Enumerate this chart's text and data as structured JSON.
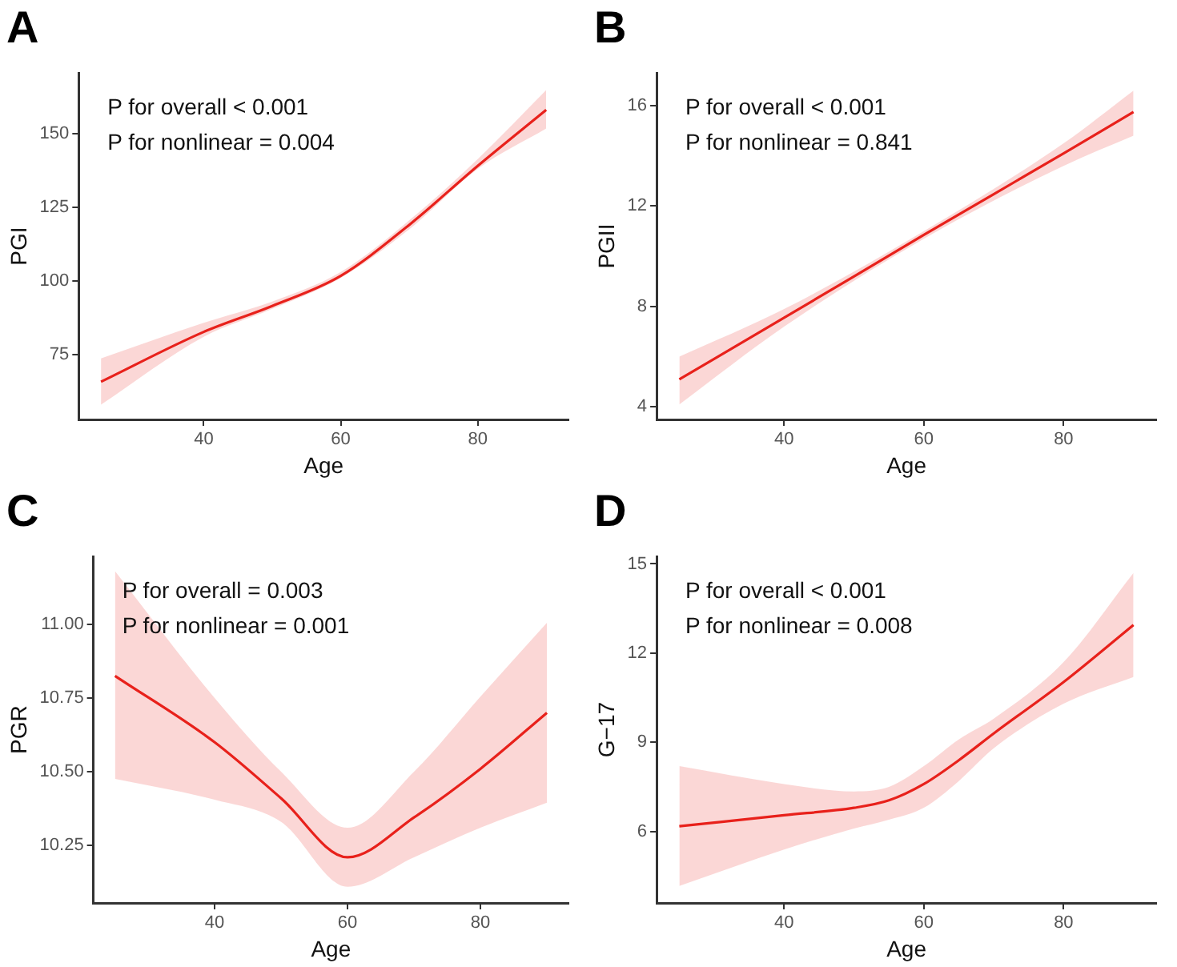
{
  "chart_data": [
    {
      "type": "line",
      "title": "A",
      "xlabel": "Age",
      "ylabel": "PGI",
      "annotations": [
        "P for overall < 0.001",
        "P for nonlinear = 0.004"
      ],
      "x": [
        25,
        40,
        50,
        60,
        70,
        80,
        90
      ],
      "xlim": [
        21.75,
        93.25
      ],
      "xticks": [
        40,
        60,
        80
      ],
      "ylim": [
        53,
        170.5
      ],
      "yticks": [
        75,
        100,
        125,
        150
      ],
      "grid": false,
      "legend": false,
      "series": [
        {
          "color": "#e8211c",
          "values": [
            65.8,
            82.7,
            91.5,
            101.7,
            119,
            139,
            158
          ],
          "lower": [
            58,
            81,
            90.5,
            101,
            117.5,
            138,
            151.7
          ],
          "upper": [
            73.7,
            85.8,
            93,
            103,
            120.5,
            141.3,
            164.7
          ]
        }
      ]
    },
    {
      "type": "line",
      "title": "B",
      "xlabel": "Age",
      "ylabel": "PGII",
      "annotations": [
        "P for overall < 0.001",
        "P for nonlinear = 0.841"
      ],
      "x": [
        25,
        40,
        60,
        80,
        90
      ],
      "xlim": [
        21.75,
        93.25
      ],
      "xticks": [
        40,
        60,
        80
      ],
      "ylim": [
        3.5,
        17.3
      ],
      "yticks": [
        4,
        8,
        12,
        16
      ],
      "grid": false,
      "legend": false,
      "series": [
        {
          "color": "#e8211c",
          "values": [
            5.1,
            7.55,
            10.85,
            14.1,
            15.75
          ],
          "lower": [
            4.1,
            7.2,
            10.7,
            13.6,
            14.8
          ],
          "upper": [
            6.0,
            7.9,
            11.0,
            14.5,
            16.6
          ]
        }
      ]
    },
    {
      "type": "line",
      "title": "C",
      "xlabel": "Age",
      "ylabel": "PGR",
      "annotations": [
        "P for overall = 0.003",
        "P for nonlinear = 0.001"
      ],
      "x": [
        25,
        40,
        50,
        60,
        70,
        80,
        90
      ],
      "xlim": [
        21.75,
        93.25
      ],
      "xticks": [
        40,
        60,
        80
      ],
      "ylim": [
        10.055,
        11.23
      ],
      "yticks": [
        {
          "value": 10.25,
          "label": "10.25"
        },
        {
          "value": 10.5,
          "label": "10.50"
        },
        {
          "value": 10.75,
          "label": "10.75"
        },
        {
          "value": 11,
          "label": "11.00"
        }
      ],
      "grid": false,
      "legend": false,
      "series": [
        {
          "color": "#e8211c",
          "values": [
            10.825,
            10.6,
            10.41,
            10.21,
            10.345,
            10.51,
            10.7
          ],
          "lower": [
            10.476,
            10.405,
            10.33,
            10.11,
            10.21,
            10.31,
            10.395
          ],
          "upper": [
            11.18,
            10.75,
            10.5,
            10.31,
            10.5,
            10.755,
            11.005
          ]
        }
      ]
    },
    {
      "type": "line",
      "title": "D",
      "xlabel": "Age",
      "ylabel": "G−17",
      "annotations": [
        "P for overall < 0.001",
        "P for nonlinear = 0.008"
      ],
      "x": [
        25,
        40,
        50,
        55,
        60,
        65,
        70,
        80,
        90
      ],
      "xlim": [
        21.75,
        93.25
      ],
      "xticks": [
        40,
        60,
        80
      ],
      "ylim": [
        3.6,
        15.25
      ],
      "yticks": [
        6,
        9,
        12,
        15
      ],
      "grid": false,
      "legend": false,
      "series": [
        {
          "color": "#e8211c",
          "values": [
            6.18,
            6.55,
            6.8,
            7.05,
            7.6,
            8.4,
            9.3,
            11.03,
            12.95
          ],
          "lower": [
            4.17,
            5.4,
            6.1,
            6.4,
            6.8,
            7.7,
            8.8,
            10.3,
            11.2
          ],
          "upper": [
            8.2,
            7.6,
            7.35,
            7.5,
            8.2,
            9.1,
            9.8,
            11.7,
            14.7
          ]
        }
      ]
    }
  ]
}
